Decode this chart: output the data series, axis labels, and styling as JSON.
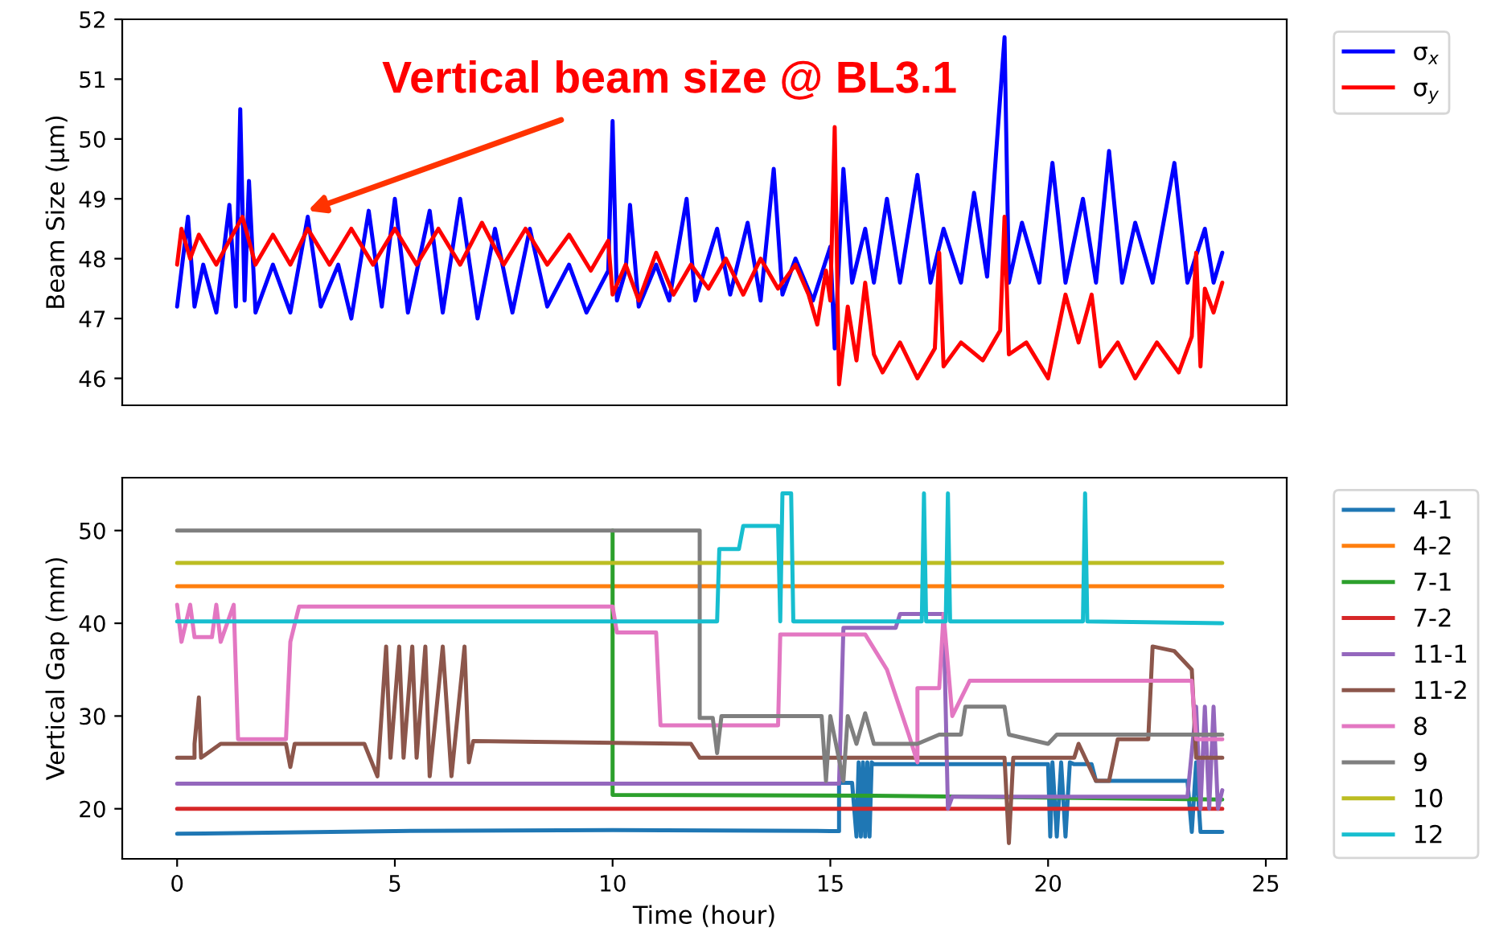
{
  "chart_data": [
    {
      "type": "line",
      "ylabel": "Beam Size (μm)",
      "xlim": [
        -1.26,
        25.48
      ],
      "ylim": [
        45.55,
        52.0
      ],
      "yticks": [
        46,
        47,
        48,
        49,
        50,
        51,
        52
      ],
      "tick_labels": "y",
      "grid": false,
      "legend": "right",
      "annotations": [
        {
          "text": "Vertical beam size @ BL3.1",
          "x": 3.0,
          "y": 48.8
        }
      ],
      "series": [
        {
          "name": "σ$_{x}$",
          "color": "#0000ff",
          "x": [
            0,
            0.1,
            0.25,
            0.4,
            0.6,
            0.9,
            1.2,
            1.35,
            1.45,
            1.55,
            1.65,
            1.8,
            2.2,
            2.6,
            3.0,
            3.3,
            3.7,
            4.0,
            4.4,
            4.7,
            5.0,
            5.3,
            5.8,
            6.1,
            6.5,
            6.9,
            7.3,
            7.7,
            8.1,
            8.5,
            9.0,
            9.4,
            9.9,
            10.0,
            10.1,
            10.3,
            10.4,
            10.6,
            11.0,
            11.3,
            11.7,
            11.9,
            12.4,
            12.7,
            13.1,
            13.4,
            13.7,
            13.9,
            14.2,
            14.6,
            15.0,
            15.1,
            15.3,
            15.5,
            15.8,
            16.0,
            16.3,
            16.6,
            17.0,
            17.3,
            17.6,
            18.0,
            18.3,
            18.6,
            19.0,
            19.1,
            19.4,
            19.8,
            20.1,
            20.4,
            20.8,
            21.1,
            21.4,
            21.7,
            22.0,
            22.4,
            22.9,
            23.2,
            23.6,
            23.8,
            24.0
          ],
          "values": [
            47.2,
            47.8,
            48.7,
            47.2,
            47.9,
            47.1,
            48.9,
            47.2,
            50.5,
            47.3,
            49.3,
            47.1,
            47.9,
            47.1,
            48.7,
            47.2,
            47.9,
            47.0,
            48.8,
            47.2,
            49.0,
            47.1,
            48.8,
            47.1,
            49.0,
            47.0,
            48.5,
            47.1,
            48.5,
            47.2,
            47.9,
            47.1,
            47.8,
            50.3,
            47.3,
            47.8,
            48.9,
            47.2,
            47.9,
            47.3,
            49.0,
            47.3,
            48.5,
            47.4,
            48.6,
            47.3,
            49.5,
            47.4,
            48.0,
            47.3,
            48.2,
            46.5,
            49.5,
            47.6,
            48.5,
            47.6,
            49.0,
            47.6,
            49.4,
            47.6,
            48.5,
            47.6,
            49.1,
            47.7,
            51.7,
            47.6,
            48.6,
            47.6,
            49.6,
            47.6,
            49.0,
            47.6,
            49.8,
            47.6,
            48.6,
            47.6,
            49.6,
            47.6,
            48.5,
            47.6,
            48.1
          ]
        },
        {
          "name": "σ$_{y}$",
          "color": "#ff0000",
          "x": [
            0,
            0.1,
            0.3,
            0.5,
            0.9,
            1.5,
            1.8,
            2.2,
            2.6,
            3.0,
            3.5,
            4.0,
            4.5,
            5.0,
            5.5,
            6.0,
            6.5,
            7.0,
            7.5,
            8.0,
            8.5,
            9.0,
            9.5,
            9.9,
            10.0,
            10.3,
            10.6,
            11.0,
            11.4,
            11.8,
            12.2,
            12.6,
            13.0,
            13.4,
            13.8,
            14.2,
            14.5,
            14.7,
            14.9,
            15.0,
            15.1,
            15.2,
            15.4,
            15.6,
            15.8,
            16.0,
            16.2,
            16.6,
            17.0,
            17.4,
            17.5,
            17.6,
            18.0,
            18.5,
            18.9,
            19.0,
            19.1,
            19.5,
            20.0,
            20.4,
            20.7,
            21.0,
            21.2,
            21.6,
            22.0,
            22.5,
            23.0,
            23.3,
            23.4,
            23.5,
            23.6,
            23.8,
            24.0
          ],
          "values": [
            47.9,
            48.5,
            48.0,
            48.4,
            47.9,
            48.7,
            47.9,
            48.4,
            47.9,
            48.5,
            47.9,
            48.5,
            47.9,
            48.5,
            47.9,
            48.5,
            47.9,
            48.6,
            47.9,
            48.5,
            47.9,
            48.4,
            47.8,
            48.3,
            47.4,
            47.9,
            47.3,
            48.1,
            47.4,
            47.9,
            47.5,
            48.0,
            47.4,
            48.0,
            47.5,
            47.9,
            47.4,
            46.9,
            47.8,
            47.3,
            50.2,
            45.9,
            47.2,
            46.3,
            47.6,
            46.4,
            46.1,
            46.6,
            46.0,
            46.5,
            48.1,
            46.2,
            46.6,
            46.3,
            46.8,
            48.7,
            46.4,
            46.6,
            46.0,
            47.4,
            46.6,
            47.4,
            46.2,
            46.6,
            46.0,
            46.6,
            46.1,
            46.7,
            48.1,
            46.2,
            47.5,
            47.1,
            47.6
          ]
        }
      ]
    },
    {
      "type": "line",
      "xlabel": "Time (hour)",
      "ylabel": "Vertical Gap (mm)",
      "xlim": [
        -1.26,
        25.48
      ],
      "xticks": [
        0,
        5,
        10,
        15,
        20,
        25
      ],
      "ylim": [
        14.6,
        55.7
      ],
      "yticks": [
        20,
        30,
        40,
        50
      ],
      "grid": false,
      "legend": "right",
      "series": [
        {
          "name": "4-1",
          "color": "#1f77b4",
          "x": [
            0,
            5,
            10,
            15,
            15.2,
            15.2,
            15.5,
            15.6,
            15.65,
            15.7,
            15.75,
            15.8,
            15.85,
            15.9,
            15.95,
            16.0,
            20.0,
            20.05,
            20.1,
            20.2,
            20.3,
            20.4,
            20.5,
            20.6,
            21.0,
            21.1,
            23.2,
            23.3,
            23.4,
            23.5,
            24
          ],
          "values": [
            17.3,
            17.6,
            17.7,
            17.6,
            17.6,
            22.8,
            22.8,
            17,
            25,
            17,
            25,
            17,
            25,
            17,
            25,
            24.8,
            24.8,
            17,
            25,
            17,
            25,
            17,
            25,
            24.8,
            24.8,
            23.0,
            23.0,
            17.5,
            25,
            17.5,
            17.5
          ]
        },
        {
          "name": "4-2",
          "color": "#ff7f0e",
          "x": [
            0,
            24
          ],
          "values": [
            44,
            44
          ]
        },
        {
          "name": "7-1",
          "color": "#2ca02c",
          "x": [
            10,
            10,
            16,
            24
          ],
          "values": [
            50,
            21.5,
            21.4,
            21
          ]
        },
        {
          "name": "7-2",
          "color": "#d62728",
          "x": [
            0,
            24
          ],
          "values": [
            20,
            20
          ]
        },
        {
          "name": "11-1",
          "color": "#9467bd",
          "x": [
            0,
            15.2,
            15.3,
            16.5,
            16.6,
            17.6,
            17.7,
            17.8,
            23.2,
            23.4,
            23.5,
            23.6,
            23.7,
            23.8,
            23.9,
            24
          ],
          "values": [
            22.7,
            22.7,
            39.5,
            39.5,
            41.0,
            41.0,
            20.0,
            21.3,
            21.3,
            31,
            20,
            31,
            20,
            31,
            20,
            22
          ]
        },
        {
          "name": "11-2",
          "color": "#8c564b",
          "x": [
            0,
            0.4,
            0.4,
            0.5,
            0.55,
            1.0,
            2.5,
            2.6,
            2.7,
            4.3,
            4.6,
            4.8,
            4.9,
            5.1,
            5.2,
            5.4,
            5.5,
            5.7,
            5.8,
            6.1,
            6.3,
            6.6,
            6.7,
            6.8,
            11.8,
            12.0,
            19.0,
            19.1,
            19.2,
            20.6,
            20.7,
            21.1,
            21.4,
            21.6,
            22.3,
            22.4,
            22.9,
            23.3,
            23.4,
            24
          ],
          "values": [
            25.5,
            25.5,
            27,
            32,
            25.5,
            27,
            27,
            24.5,
            27,
            27,
            23.5,
            37.5,
            25.5,
            37.5,
            25.5,
            37.5,
            25.5,
            37.5,
            23.5,
            37.5,
            23.5,
            37.5,
            25,
            27.3,
            27,
            25.5,
            25.5,
            16.3,
            25.5,
            25.5,
            27,
            23,
            23,
            27.5,
            27.5,
            37.5,
            37,
            35,
            25.5,
            25.5
          ]
        },
        {
          "name": "8",
          "color": "#e377c2",
          "x": [
            0,
            0.1,
            0.3,
            0.4,
            0.8,
            0.9,
            1.0,
            1.3,
            1.4,
            2.5,
            2.6,
            2.8,
            10.0,
            10.1,
            11.0,
            11.1,
            13.8,
            13.85,
            15.8,
            16.3,
            16.8,
            17.0,
            17.0,
            17.5,
            17.6,
            17.8,
            18.2,
            23.3,
            23.4,
            24
          ],
          "values": [
            42,
            38,
            42,
            38.5,
            38.5,
            42,
            38,
            42,
            27.5,
            27.5,
            38,
            41.8,
            41.8,
            39,
            39,
            29,
            29,
            38.8,
            38.8,
            35,
            28,
            25,
            33,
            33,
            41,
            30,
            33.8,
            33.8,
            27.5,
            27.5
          ]
        },
        {
          "name": "9",
          "color": "#7f7f7f",
          "x": [
            0,
            12.0,
            12.0,
            12.3,
            12.4,
            12.5,
            14.8,
            14.9,
            15.0,
            15.3,
            15.4,
            15.6,
            15.8,
            16.0,
            17.0,
            17.5,
            18.0,
            18.1,
            19.0,
            19.1,
            20.0,
            20.2,
            23.2,
            24
          ],
          "values": [
            50,
            50,
            29.8,
            29.8,
            26,
            30,
            30,
            23,
            30,
            23,
            30,
            27,
            30.3,
            27,
            27,
            28,
            28,
            31,
            31,
            28,
            27,
            28,
            28,
            28
          ]
        },
        {
          "name": "10",
          "color": "#bcbd22",
          "x": [
            0,
            24
          ],
          "values": [
            46.5,
            46.5
          ]
        },
        {
          "name": "12",
          "color": "#17becf",
          "x": [
            0,
            12.4,
            12.45,
            12.9,
            13.0,
            13.8,
            13.85,
            13.9,
            14.1,
            14.15,
            17.1,
            17.15,
            17.2,
            17.65,
            17.7,
            17.75,
            20.8,
            20.85,
            20.9,
            24
          ],
          "values": [
            40.2,
            40.2,
            48,
            48,
            50.5,
            50.5,
            40.2,
            54,
            54,
            40.2,
            40.2,
            54,
            40.2,
            40.2,
            54,
            40.2,
            40.2,
            54,
            40.2,
            40
          ]
        }
      ]
    }
  ]
}
